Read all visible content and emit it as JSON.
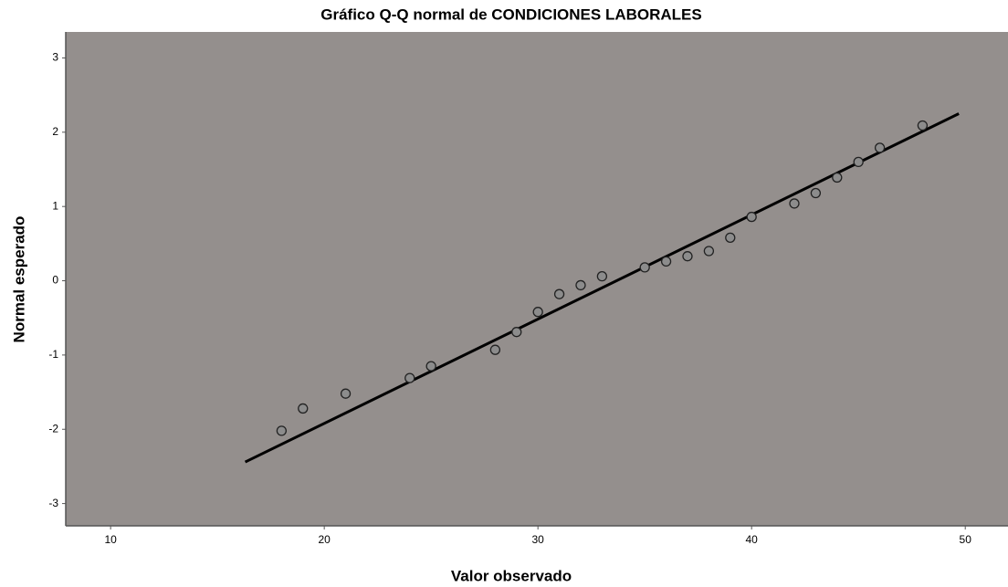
{
  "chart_data": {
    "type": "scatter",
    "title": "Gráfico Q-Q normal de CONDICIONES LABORALES",
    "x_label": "Valor observado",
    "y_label": "Normal esperado",
    "x": [
      18,
      19,
      21,
      24,
      25,
      28,
      29,
      30,
      31,
      32,
      33,
      35,
      36,
      37,
      38,
      39,
      40,
      42,
      43,
      44,
      45,
      46,
      48
    ],
    "values": [
      -2.02,
      -1.72,
      -1.52,
      -1.31,
      -1.15,
      -0.93,
      -0.69,
      -0.42,
      -0.18,
      -0.06,
      0.06,
      0.18,
      0.26,
      0.33,
      0.4,
      0.58,
      0.86,
      1.04,
      1.18,
      1.39,
      1.6,
      1.79,
      2.09
    ],
    "color": "#8c8c8c",
    "reference_line": {
      "x": [
        16.3,
        49.7
      ],
      "y": [
        -2.44,
        2.25
      ],
      "color": "#000000"
    },
    "background": "#948f8d",
    "xlim": [
      7.9,
      52
    ],
    "xticks": [
      10,
      20,
      30,
      40,
      50
    ],
    "ylim": [
      -3.3,
      3.35
    ],
    "yticks": [
      -3,
      -2,
      -1,
      0,
      1,
      2,
      3
    ],
    "grid": false
  }
}
